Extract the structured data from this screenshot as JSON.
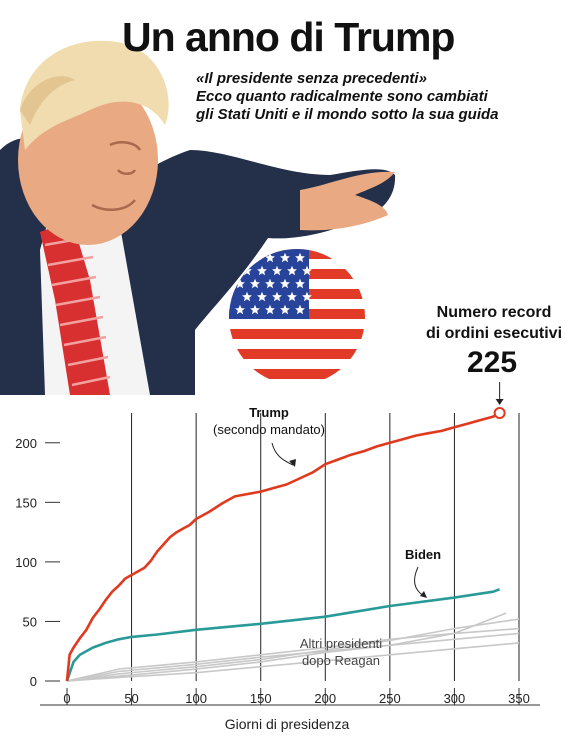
{
  "header": {
    "title": "Un anno di Trump",
    "subtitle_lines": [
      "«Il presidente senza precedenti»",
      "Ecco quanto radicalmente sono cambiati",
      "gli Stati Uniti e il mondo sotto la sua guida"
    ]
  },
  "callout": {
    "label_lines": [
      "Numero record",
      "di ordini esecutivi"
    ],
    "value": "225"
  },
  "labels": {
    "trump": "Trump",
    "trump_sub": "(secondo mandato)",
    "biden": "Biden",
    "others_1": "Altri presidenti",
    "others_2": "dopo Reagan"
  },
  "colors": {
    "trump": "#e03a1e",
    "biden": "#2a9a98",
    "others": "#c8c8c8",
    "flag_red": "#e13b28",
    "flag_blue": "#27449a"
  },
  "chart_data": {
    "type": "line",
    "xlabel": "Giorni di presidenza",
    "ylabel": "",
    "xlim": [
      0,
      350
    ],
    "ylim": [
      0,
      225
    ],
    "x_ticks": [
      0,
      50,
      100,
      150,
      200,
      250,
      300,
      350
    ],
    "y_ticks": [
      0,
      50,
      100,
      150,
      200
    ],
    "series": [
      {
        "name": "Trump",
        "x": [
          0,
          2,
          5,
          10,
          15,
          20,
          25,
          30,
          35,
          40,
          45,
          50,
          55,
          60,
          65,
          70,
          75,
          80,
          85,
          90,
          95,
          100,
          110,
          120,
          130,
          140,
          150,
          160,
          170,
          180,
          190,
          200,
          210,
          220,
          230,
          240,
          250,
          260,
          270,
          280,
          290,
          300,
          310,
          320,
          330,
          335
        ],
        "y": [
          0,
          22,
          28,
          36,
          43,
          53,
          60,
          68,
          75,
          80,
          86,
          89,
          92,
          95,
          101,
          109,
          115,
          121,
          125,
          128,
          131,
          136,
          142,
          149,
          155,
          157,
          159,
          162,
          165,
          170,
          175,
          182,
          186,
          190,
          193,
          197,
          200,
          203,
          206,
          208,
          210,
          213,
          216,
          219,
          222,
          225
        ]
      },
      {
        "name": "Biden",
        "x": [
          0,
          5,
          10,
          20,
          30,
          40,
          50,
          70,
          100,
          150,
          200,
          250,
          300,
          330,
          335
        ],
        "y": [
          0,
          16,
          22,
          28,
          32,
          35,
          37,
          39,
          43,
          48,
          54,
          63,
          70,
          75,
          77
        ]
      },
      {
        "name": "",
        "x": [
          0,
          40,
          100,
          150,
          200,
          250,
          300,
          340
        ],
        "y": [
          0,
          4,
          10,
          16,
          24,
          30,
          40,
          57
        ]
      },
      {
        "name": "",
        "x": [
          0,
          40,
          100,
          150,
          200,
          250,
          300,
          350
        ],
        "y": [
          0,
          6,
          12,
          18,
          26,
          34,
          44,
          52
        ]
      },
      {
        "name": "",
        "x": [
          0,
          40,
          100,
          150,
          200,
          250,
          300,
          350
        ],
        "y": [
          0,
          10,
          16,
          22,
          28,
          35,
          40,
          44
        ]
      },
      {
        "name": "",
        "x": [
          0,
          40,
          100,
          150,
          200,
          250,
          300,
          350
        ],
        "y": [
          0,
          8,
          14,
          20,
          25,
          30,
          35,
          40
        ]
      },
      {
        "name": "",
        "x": [
          0,
          40,
          100,
          150,
          200,
          250,
          300,
          350
        ],
        "y": [
          0,
          3,
          7,
          12,
          17,
          22,
          27,
          32
        ]
      }
    ]
  }
}
